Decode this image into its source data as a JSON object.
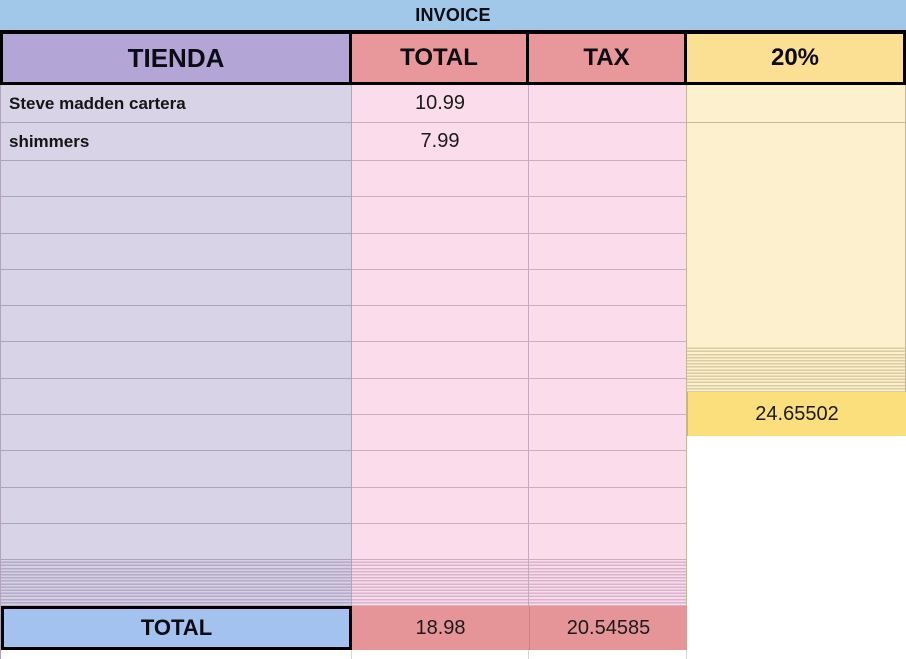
{
  "title": "INVOICE",
  "header": {
    "columns": [
      "TIENDA",
      "TOTAL",
      "TAX",
      "20%"
    ]
  },
  "rows": [
    {
      "tienda": "Steve madden cartera",
      "total": "10.99",
      "tax": "",
      "pct": ""
    },
    {
      "tienda": "shimmers",
      "total": "7.99",
      "tax": "",
      "pct": ""
    }
  ],
  "empty_row_count": 11,
  "collapsed_rows_note": "band of hidden/collapsed thin rows above totals",
  "footer": {
    "label": "TOTAL",
    "total": "18.98",
    "tax": "20.54585",
    "pct": "24.65502"
  },
  "colors": {
    "title_bar_bg": "#a2c8e9",
    "header_tienda_bg": "#b3a6d7",
    "header_total_bg": "#e8989b",
    "header_tax_bg": "#e8989b",
    "header_pct_bg": "#fbe093",
    "cell_tienda_bg": "#d9d3e8",
    "cell_money_bg": "#fbdcea",
    "cell_pct_bg": "#fdf0cf",
    "footer_label_bg": "#a3c2ef",
    "footer_money_bg": "#e59598",
    "footer_pct_bg": "#fcdf7d",
    "frame_border": "#000000"
  }
}
